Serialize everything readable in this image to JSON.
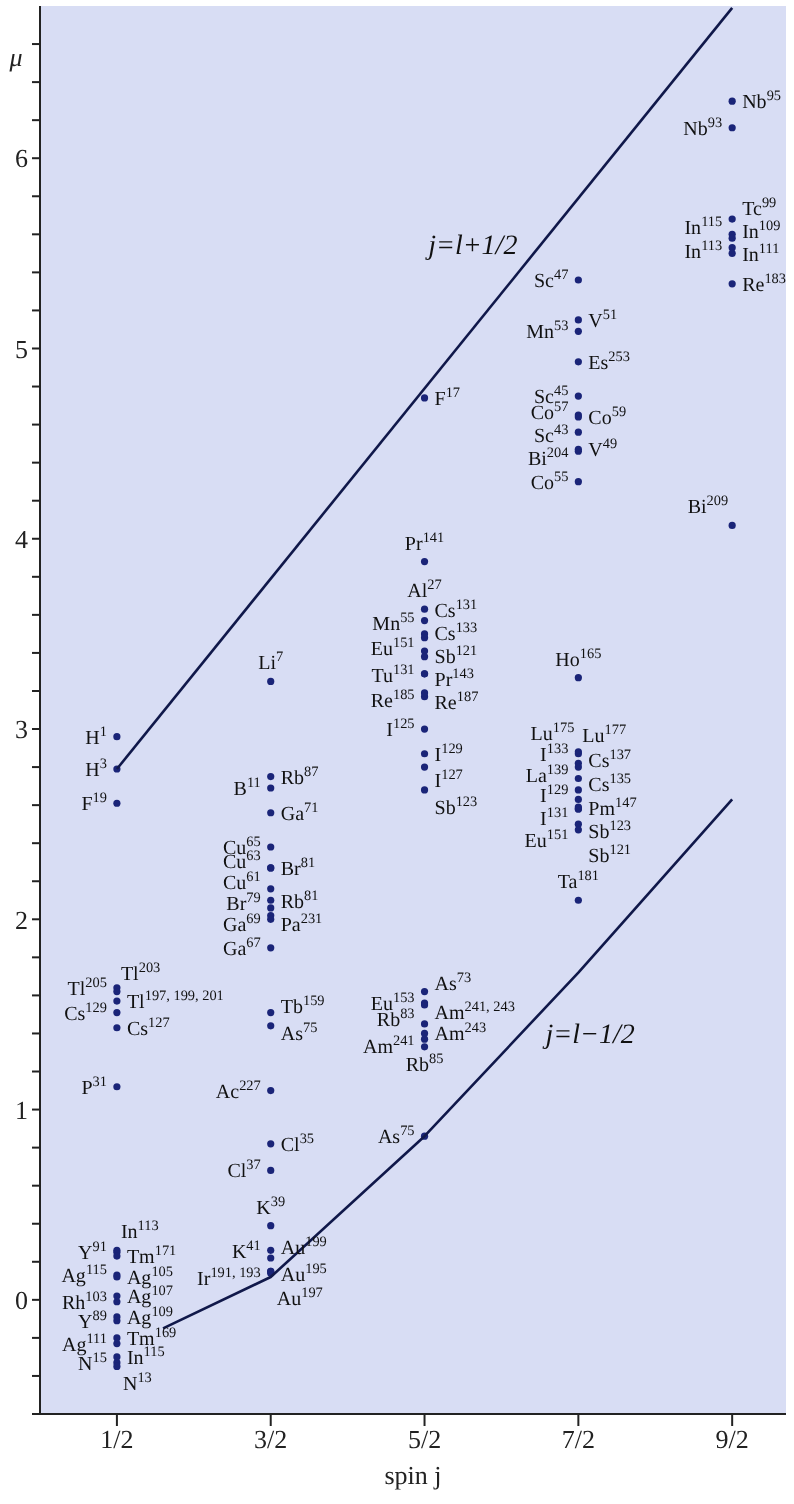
{
  "chart_data": {
    "type": "scatter",
    "xlabel": "spin j",
    "ylabel": "μ",
    "xlim": [
      0,
      4.85
    ],
    "ylim": [
      -0.6,
      6.8
    ],
    "xticks": [
      {
        "value": 0.5,
        "label": "1/2"
      },
      {
        "value": 1.5,
        "label": "3/2"
      },
      {
        "value": 2.5,
        "label": "5/2"
      },
      {
        "value": 3.5,
        "label": "7/2"
      },
      {
        "value": 4.5,
        "label": "9/2"
      }
    ],
    "yticks": [
      {
        "value": -0.6,
        "label": null
      },
      {
        "value": -0.4,
        "label": null
      },
      {
        "value": -0.2,
        "label": null
      },
      0,
      {
        "value": 0.2,
        "label": null
      },
      {
        "value": 0.4,
        "label": null
      },
      {
        "value": 0.6,
        "label": null
      },
      {
        "value": 0.8,
        "label": null
      },
      1,
      {
        "value": 1.2,
        "label": null
      },
      {
        "value": 1.4,
        "label": null
      },
      {
        "value": 1.6,
        "label": null
      },
      {
        "value": 1.8,
        "label": null
      },
      2,
      {
        "value": 2.2,
        "label": null
      },
      {
        "value": 2.4,
        "label": null
      },
      {
        "value": 2.6,
        "label": null
      },
      {
        "value": 2.8,
        "label": null
      },
      3,
      {
        "value": 3.2,
        "label": null
      },
      {
        "value": 3.4,
        "label": null
      },
      {
        "value": 3.6,
        "label": null
      },
      {
        "value": 3.8,
        "label": null
      },
      4,
      {
        "value": 4.2,
        "label": null
      },
      {
        "value": 4.4,
        "label": null
      },
      {
        "value": 4.6,
        "label": null
      },
      {
        "value": 4.8,
        "label": null
      },
      5,
      {
        "value": 5.2,
        "label": null
      },
      {
        "value": 5.4,
        "label": null
      },
      {
        "value": 5.6,
        "label": null
      },
      {
        "value": 5.8,
        "label": null
      },
      6,
      {
        "value": 6.2,
        "label": null
      },
      {
        "value": 6.4,
        "label": null
      },
      {
        "value": 6.6,
        "label": null
      }
    ],
    "grid": false,
    "legend": false,
    "marker": "circle",
    "series": [
      {
        "color": "#1a2478",
        "x": [
          0.5,
          0.5,
          0.5,
          0.5,
          0.5,
          0.5,
          0.5,
          0.5,
          0.5,
          0.5,
          0.5,
          0.5,
          0.5,
          0.5,
          0.5,
          0.5,
          0.5,
          0.5,
          0.5,
          0.5,
          0.5,
          0.5,
          0.5,
          1.5,
          1.5,
          1.5,
          1.5,
          1.5,
          1.5,
          1.5,
          1.5,
          1.5,
          1.5,
          1.5,
          1.5,
          1.5,
          1.5,
          1.5,
          1.5,
          1.5,
          1.5,
          1.5,
          1.5,
          1.5,
          1.5,
          1.5,
          1.5,
          2.5,
          2.5,
          2.5,
          2.5,
          2.5,
          2.5,
          2.5,
          2.5,
          2.5,
          2.5,
          2.5,
          2.5,
          2.5,
          2.5,
          2.5,
          2.5,
          2.5,
          2.5,
          2.5,
          2.5,
          2.5,
          2.5,
          2.5,
          2.5,
          3.5,
          3.5,
          3.5,
          3.5,
          3.5,
          3.5,
          3.5,
          3.5,
          3.5,
          3.5,
          3.5,
          3.5,
          3.5,
          3.5,
          3.5,
          3.5,
          3.5,
          3.5,
          3.5,
          3.5,
          3.5,
          3.5,
          3.5,
          3.5,
          3.5,
          4.5,
          4.5,
          4.5,
          4.5,
          4.5,
          4.5,
          4.5,
          4.5,
          4.5
        ],
        "values": [
          2.96,
          2.79,
          2.61,
          1.64,
          1.62,
          1.57,
          1.51,
          1.43,
          1.12,
          0.25,
          0.26,
          0.23,
          0.13,
          0.12,
          -0.01,
          0.02,
          -0.11,
          -0.09,
          -0.23,
          -0.2,
          -0.33,
          -0.3,
          -0.35,
          3.25,
          2.75,
          2.69,
          2.56,
          2.38,
          2.27,
          2.27,
          2.16,
          2.1,
          2.06,
          2.02,
          2,
          1.85,
          1.51,
          1.44,
          1.1,
          0.82,
          0.68,
          0.39,
          0.26,
          0.22,
          0.15,
          0.14,
          0.15,
          4.74,
          3.88,
          3.63,
          3.5,
          3.57,
          3.48,
          3.41,
          3.38,
          3.29,
          3.29,
          3.17,
          3.19,
          3,
          2.87,
          2.8,
          2.68,
          1.62,
          1.56,
          1.55,
          1.45,
          1.37,
          1.4,
          1.33,
          0.86,
          5.36,
          5.15,
          5.09,
          4.93,
          4.75,
          4.65,
          4.64,
          4.56,
          4.46,
          4.47,
          4.3,
          3.27,
          2.88,
          2.87,
          2.82,
          2.8,
          2.74,
          2.68,
          2.63,
          2.58,
          2.58,
          2.5,
          2.59,
          2.47,
          2.1,
          6.3,
          6.16,
          5.68,
          5.6,
          5.58,
          5.53,
          5.5,
          5.34,
          4.07
        ]
      },
      {
        "type": "line",
        "name": "j=l+1/2",
        "marker": "none",
        "color": "#10184a",
        "x": [
          0.5,
          4.5
        ],
        "values": [
          2.79,
          6.79
        ]
      },
      {
        "type": "line",
        "name": "j=l−1/2",
        "marker": "none",
        "color": "#10184a",
        "x": [
          0.8,
          1.5,
          2.5,
          3.5,
          4.5
        ],
        "values": [
          -0.15,
          0.12,
          0.86,
          1.72,
          2.63
        ]
      }
    ],
    "annotations": [
      {
        "text": "H$^{1}$",
        "x": 0.5,
        "y": 2.96
      },
      {
        "text": "H$^{3}$",
        "x": 0.5,
        "y": 2.79
      },
      {
        "text": "F$^{19}$",
        "x": 0.5,
        "y": 2.61
      },
      {
        "text": "Tl$^{205}$",
        "x": 0.5,
        "y": 1.64
      },
      {
        "text": "Tl$^{203}$",
        "x": 0.5,
        "y": 1.62
      },
      {
        "text": "Tl$^{197, 199, 201}$",
        "x": 0.5,
        "y": 1.57
      },
      {
        "text": "Cs$^{129}$",
        "x": 0.5,
        "y": 1.51
      },
      {
        "text": "Cs$^{127}$",
        "x": 0.5,
        "y": 1.43
      },
      {
        "text": "P$^{31}$",
        "x": 0.5,
        "y": 1.12
      },
      {
        "text": "Y$^{91}$",
        "x": 0.5,
        "y": 0.25
      },
      {
        "text": "In$^{113}$",
        "x": 0.5,
        "y": 0.26
      },
      {
        "text": "Tm$^{171}$",
        "x": 0.5,
        "y": 0.23
      },
      {
        "text": "Ag$^{115}$",
        "x": 0.5,
        "y": 0.13
      },
      {
        "text": "Ag$^{105}$",
        "x": 0.5,
        "y": 0.12
      },
      {
        "text": "Rh$^{103}$",
        "x": 0.5,
        "y": -0.01
      },
      {
        "text": "Ag$^{107}$",
        "x": 0.5,
        "y": 0.02
      },
      {
        "text": "Y$^{89}$",
        "x": 0.5,
        "y": -0.11
      },
      {
        "text": "Ag$^{109}$",
        "x": 0.5,
        "y": -0.09
      },
      {
        "text": "Ag$^{111}$",
        "x": 0.5,
        "y": -0.23
      },
      {
        "text": "Tm$^{169}$",
        "x": 0.5,
        "y": -0.2
      },
      {
        "text": "N$^{15}$",
        "x": 0.5,
        "y": -0.33
      },
      {
        "text": "In$^{115}$",
        "x": 0.5,
        "y": -0.3
      },
      {
        "text": "N$^{13}$",
        "x": 0.5,
        "y": -0.35
      },
      {
        "text": "Li$^{7}$",
        "x": 1.5,
        "y": 3.25
      },
      {
        "text": "Rb$^{87}$",
        "x": 1.5,
        "y": 2.75
      },
      {
        "text": "B$^{11}$",
        "x": 1.5,
        "y": 2.69
      },
      {
        "text": "Ga$^{71}$",
        "x": 1.5,
        "y": 2.56
      },
      {
        "text": "Cu$^{65}$",
        "x": 1.5,
        "y": 2.38
      },
      {
        "text": "Cu$^{63}$",
        "x": 1.5,
        "y": 2.27
      },
      {
        "text": "Br$^{81}$",
        "x": 1.5,
        "y": 2.27
      },
      {
        "text": "Cu$^{61}$",
        "x": 1.5,
        "y": 2.16
      },
      {
        "text": "Br$^{79}$",
        "x": 1.5,
        "y": 2.1
      },
      {
        "text": "Rb$^{81}$",
        "x": 1.5,
        "y": 2.06
      },
      {
        "text": "Ga$^{69}$",
        "x": 1.5,
        "y": 2.02
      },
      {
        "text": "Pa$^{231}$",
        "x": 1.5,
        "y": 2
      },
      {
        "text": "Ga$^{67}$",
        "x": 1.5,
        "y": 1.85
      },
      {
        "text": "Tb$^{159}$",
        "x": 1.5,
        "y": 1.51
      },
      {
        "text": "As$^{75}$",
        "x": 1.5,
        "y": 1.44
      },
      {
        "text": "Ac$^{227}$",
        "x": 1.5,
        "y": 1.1
      },
      {
        "text": "Cl$^{35}$",
        "x": 1.5,
        "y": 0.82
      },
      {
        "text": "Cl$^{37}$",
        "x": 1.5,
        "y": 0.68
      },
      {
        "text": "K$^{39}$",
        "x": 1.5,
        "y": 0.39
      },
      {
        "text": "Au$^{199}$",
        "x": 1.5,
        "y": 0.26
      },
      {
        "text": "K$^{41}$",
        "x": 1.5,
        "y": 0.22
      },
      {
        "text": "Ir$^{191, 193}$",
        "x": 1.5,
        "y": 0.15
      },
      {
        "text": "Au$^{197}$",
        "x": 1.5,
        "y": 0.14
      },
      {
        "text": "Au$^{195}$",
        "x": 1.5,
        "y": 0.15
      },
      {
        "text": "F$^{17}$",
        "x": 2.5,
        "y": 4.74
      },
      {
        "text": "Pr$^{141}$",
        "x": 2.5,
        "y": 3.88
      },
      {
        "text": "Al$^{27}$",
        "x": 2.5,
        "y": 3.63
      },
      {
        "text": "Mn$^{55}$",
        "x": 2.5,
        "y": 3.5
      },
      {
        "text": "Cs$^{131}$",
        "x": 2.5,
        "y": 3.57
      },
      {
        "text": "Cs$^{133}$",
        "x": 2.5,
        "y": 3.48
      },
      {
        "text": "Eu$^{151}$",
        "x": 2.5,
        "y": 3.41
      },
      {
        "text": "Sb$^{121}$",
        "x": 2.5,
        "y": 3.38
      },
      {
        "text": "Tu$^{131}$",
        "x": 2.5,
        "y": 3.29
      },
      {
        "text": "Pr$^{143}$",
        "x": 2.5,
        "y": 3.29
      },
      {
        "text": "Re$^{185}$",
        "x": 2.5,
        "y": 3.17
      },
      {
        "text": "Re$^{187}$",
        "x": 2.5,
        "y": 3.19
      },
      {
        "text": "I$^{125}$",
        "x": 2.5,
        "y": 3
      },
      {
        "text": "I$^{129}$",
        "x": 2.5,
        "y": 2.87
      },
      {
        "text": "I$^{127}$",
        "x": 2.5,
        "y": 2.8
      },
      {
        "text": "Sb$^{123}$",
        "x": 2.5,
        "y": 2.68
      },
      {
        "text": "As$^{73}$",
        "x": 2.5,
        "y": 1.62
      },
      {
        "text": "Eu$^{153}$",
        "x": 2.5,
        "y": 1.56
      },
      {
        "text": "Am$^{241, 243}$",
        "x": 2.5,
        "y": 1.55
      },
      {
        "text": "Rb$^{83}$",
        "x": 2.5,
        "y": 1.45
      },
      {
        "text": "Am$^{241}$",
        "x": 2.5,
        "y": 1.37
      },
      {
        "text": "Am$^{243}$",
        "x": 2.5,
        "y": 1.4
      },
      {
        "text": "Rb$^{85}$",
        "x": 2.5,
        "y": 1.33
      },
      {
        "text": "As$^{75}$",
        "x": 2.5,
        "y": 0.86
      },
      {
        "text": "Sc$^{47}$",
        "x": 3.5,
        "y": 5.36
      },
      {
        "text": "V$^{51}$",
        "x": 3.5,
        "y": 5.15
      },
      {
        "text": "Mn$^{53}$",
        "x": 3.5,
        "y": 5.09
      },
      {
        "text": "Es$^{253}$",
        "x": 3.5,
        "y": 4.93
      },
      {
        "text": "Sc$^{45}$",
        "x": 3.5,
        "y": 4.75
      },
      {
        "text": "Co$^{57}$",
        "x": 3.5,
        "y": 4.65
      },
      {
        "text": "Co$^{59}$",
        "x": 3.5,
        "y": 4.64
      },
      {
        "text": "Sc$^{43}$",
        "x": 3.5,
        "y": 4.56
      },
      {
        "text": "Bi$^{204}$",
        "x": 3.5,
        "y": 4.46
      },
      {
        "text": "V$^{49}$",
        "x": 3.5,
        "y": 4.47
      },
      {
        "text": "Co$^{55}$",
        "x": 3.5,
        "y": 4.3
      },
      {
        "text": "Ho$^{165}$",
        "x": 3.5,
        "y": 3.27
      },
      {
        "text": "Lu$^{175}$",
        "x": 3.5,
        "y": 2.88
      },
      {
        "text": "Lu$^{177}$",
        "x": 3.5,
        "y": 2.87
      },
      {
        "text": "I$^{133}$",
        "x": 3.5,
        "y": 2.82
      },
      {
        "text": "Cs$^{137}$",
        "x": 3.5,
        "y": 2.8
      },
      {
        "text": "La$^{139}$",
        "x": 3.5,
        "y": 2.74
      },
      {
        "text": "I$^{129}$",
        "x": 3.5,
        "y": 2.68
      },
      {
        "text": "Cs$^{135}$",
        "x": 3.5,
        "y": 2.63
      },
      {
        "text": "Eu$^{151}$",
        "x": 3.5,
        "y": 2.58
      },
      {
        "text": "I$^{131}$",
        "x": 3.5,
        "y": 2.58
      },
      {
        "text": "Sb$^{123}$",
        "x": 3.5,
        "y": 2.5
      },
      {
        "text": "Pm$^{147}$",
        "x": 3.5,
        "y": 2.59
      },
      {
        "text": "Sb$^{121}$",
        "x": 3.5,
        "y": 2.47
      },
      {
        "text": "Ta$^{181}$",
        "x": 3.5,
        "y": 2.1
      },
      {
        "text": "Nb$^{95}$",
        "x": 4.5,
        "y": 6.3
      },
      {
        "text": "Nb$^{93}$",
        "x": 4.5,
        "y": 6.16
      },
      {
        "text": "Tc$^{99}$",
        "x": 4.5,
        "y": 5.68
      },
      {
        "text": "In$^{115}$",
        "x": 4.5,
        "y": 5.6
      },
      {
        "text": "In$^{109}$",
        "x": 4.5,
        "y": 5.58
      },
      {
        "text": "In$^{113}$",
        "x": 4.5,
        "y": 5.53
      },
      {
        "text": "In$^{111}$",
        "x": 4.5,
        "y": 5.5
      },
      {
        "text": "Re$^{183}$",
        "x": 4.5,
        "y": 5.34
      },
      {
        "text": "Bi$^{209}$",
        "x": 4.5,
        "y": 4.07
      }
    ]
  }
}
